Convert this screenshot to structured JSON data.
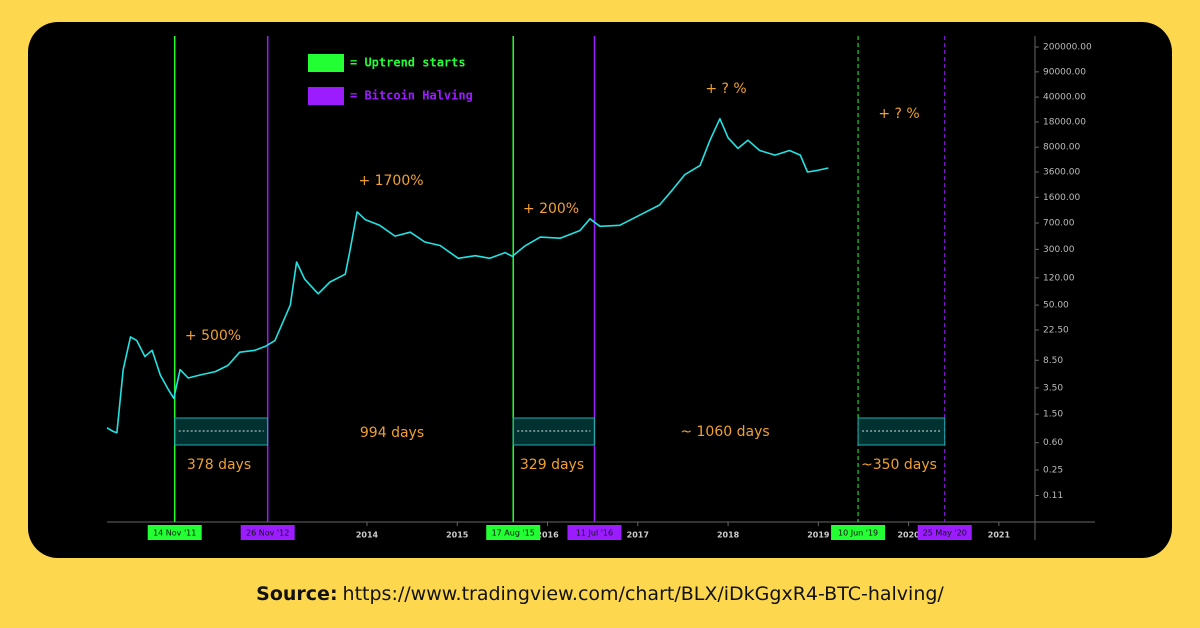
{
  "chart_data": {
    "type": "line",
    "log_scale": true,
    "color": "#22e2e2",
    "xlim": [
      2011.12,
      2021.4
    ],
    "xticks": [
      2014,
      2015,
      2016,
      2017,
      2018,
      2019,
      2020,
      2021
    ],
    "ylim": [
      0.047,
      285000
    ],
    "yticks": [
      {
        "value": 200000,
        "label": "200000.00"
      },
      {
        "value": 90000,
        "label": "90000.00"
      },
      {
        "value": 40000,
        "label": "40000.00"
      },
      {
        "value": 18000,
        "label": "18000.00"
      },
      {
        "value": 8000,
        "label": "8000.00"
      },
      {
        "value": 3600,
        "label": "3600.00"
      },
      {
        "value": 1600,
        "label": "1600.00"
      },
      {
        "value": 700,
        "label": "700.00"
      },
      {
        "value": 300,
        "label": "300.00"
      },
      {
        "value": 120,
        "label": "120.00"
      },
      {
        "value": 50,
        "label": "50.00"
      },
      {
        "value": 22.5,
        "label": "22.50"
      },
      {
        "value": 8.5,
        "label": "8.50"
      },
      {
        "value": 3.5,
        "label": "3.50"
      },
      {
        "value": 1.5,
        "label": "1.50"
      },
      {
        "value": 0.6,
        "label": "0.60"
      },
      0.25,
      0.11
    ],
    "x": [
      2011.12,
      2011.19,
      2011.23,
      2011.3,
      2011.38,
      2011.45,
      2011.54,
      2011.62,
      2011.71,
      2011.8,
      2011.86,
      2011.93,
      2012.02,
      2012.15,
      2012.32,
      2012.46,
      2012.59,
      2012.76,
      2012.88,
      2012.98,
      2013.15,
      2013.22,
      2013.31,
      2013.46,
      2013.59,
      2013.76,
      2013.81,
      2013.89,
      2013.98,
      2014.14,
      2014.31,
      2014.48,
      2014.64,
      2014.81,
      2015.01,
      2015.2,
      2015.36,
      2015.53,
      2015.61,
      2015.75,
      2015.92,
      2016.14,
      2016.36,
      2016.47,
      2016.58,
      2016.8,
      2017.02,
      2017.24,
      2017.38,
      2017.52,
      2017.69,
      2017.8,
      2017.91,
      2018.0,
      2018.11,
      2018.22,
      2018.35,
      2018.52,
      2018.68,
      2018.8,
      2018.88,
      2018.99,
      2019.11
    ],
    "values": [
      0.97,
      0.86,
      0.83,
      6.3,
      18,
      16,
      9.6,
      11.7,
      5.3,
      3.3,
      2.5,
      6.3,
      4.8,
      5.3,
      5.9,
      7.2,
      11,
      11.7,
      13.4,
      16,
      50,
      200,
      115,
      72,
      105,
      135,
      280,
      1000,
      780,
      650,
      460,
      520,
      380,
      340,
      225,
      245,
      225,
      270,
      240,
      335,
      445,
      430,
      550,
      800,
      630,
      650,
      900,
      1250,
      2000,
      3300,
      4450,
      10000,
      20000,
      10800,
      7700,
      10000,
      7200,
      6200,
      7200,
      6200,
      3600,
      3800,
      4100
    ],
    "legend": [
      {
        "label": "= Uptrend starts",
        "color": "#22ff33"
      },
      {
        "label": "= Bitcoin Halving",
        "color": "#9b1cff"
      }
    ],
    "events": [
      {
        "x": 2011.87,
        "label": "14 Nov '11",
        "kind": 0,
        "dashed": false
      },
      {
        "x": 2012.9,
        "label": "26 Nov '12",
        "kind": 1,
        "dashed": false
      },
      {
        "x": 2015.62,
        "label": "17 Aug '15",
        "kind": 0,
        "dashed": false
      },
      {
        "x": 2016.52,
        "label": "11 Jul '16",
        "kind": 1,
        "dashed": false
      },
      {
        "x": 2019.44,
        "label": "10 Jun '19",
        "kind": 0,
        "dashed": true
      },
      {
        "x": 2020.4,
        "label": "25 May '20",
        "kind": 1,
        "dashed": true
      }
    ],
    "annotations": [
      "+ 500%",
      "+ 1700%",
      "+ 200%",
      "+ ? %",
      "+ ? %",
      "994 days",
      "~ 1060 days",
      "378 days",
      "329 days",
      "~350 days"
    ]
  },
  "footer": {
    "label": "Source:",
    "url": "https://www.tradingview.com/chart/BLX/iDkGgxR4-BTC-halving/"
  }
}
